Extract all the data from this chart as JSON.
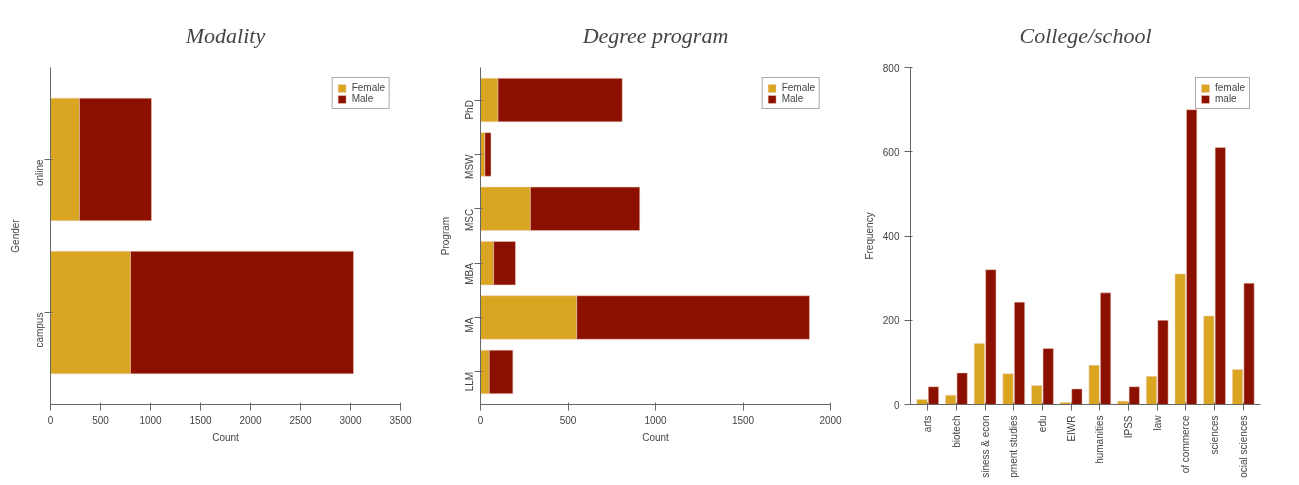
{
  "chart_data": [
    {
      "type": "bar",
      "title": "Modality",
      "orientation": "horizontal",
      "stacked": true,
      "categories": [
        "online",
        "campus"
      ],
      "xlabel": "Count",
      "ylabel": "Gender",
      "xlim": [
        0,
        3500
      ],
      "xticks": [
        0,
        500,
        1000,
        1500,
        2000,
        2500,
        3000,
        3500
      ],
      "legend": "top right",
      "series": [
        {
          "name": "Female",
          "color": "#daa520",
          "values": [
            290,
            800
          ]
        },
        {
          "name": "Male",
          "color": "#8b1000",
          "values": [
            720,
            2230
          ]
        }
      ]
    },
    {
      "type": "bar",
      "title": "Degree program",
      "orientation": "horizontal",
      "stacked": true,
      "categories": [
        "PhD",
        "MSW",
        "MSC",
        "MBA",
        "MA",
        "LLM"
      ],
      "xlabel": "Count",
      "ylabel": "Program",
      "xlim": [
        0,
        2000
      ],
      "xticks": [
        0,
        500,
        1000,
        1500,
        2000
      ],
      "legend": "top right",
      "series": [
        {
          "name": "Female",
          "color": "#daa520",
          "values": [
            100,
            25,
            285,
            75,
            550,
            50
          ]
        },
        {
          "name": "Male",
          "color": "#8b1000",
          "values": [
            710,
            35,
            625,
            125,
            1330,
            135
          ]
        }
      ]
    },
    {
      "type": "bar",
      "title": "College/school",
      "categories": [
        "arts",
        "biotech",
        "siness & econ",
        "pment studies",
        "edu",
        "EIWR",
        "humanities",
        "IPSS",
        "law",
        "of commerce",
        "sciences",
        "ocial sciences"
      ],
      "ylabel": "Frequency",
      "ylim": [
        0,
        800
      ],
      "yticks": [
        0,
        200,
        400,
        600,
        800
      ],
      "legend": "top right",
      "series": [
        {
          "name": "female",
          "color": "#daa520",
          "values": [
            12,
            22,
            145,
            73,
            45,
            5,
            93,
            8,
            67,
            310,
            210,
            83
          ]
        },
        {
          "name": "male",
          "color": "#8b1000",
          "values": [
            42,
            75,
            320,
            243,
            133,
            37,
            265,
            42,
            200,
            700,
            610,
            288
          ]
        }
      ]
    }
  ]
}
